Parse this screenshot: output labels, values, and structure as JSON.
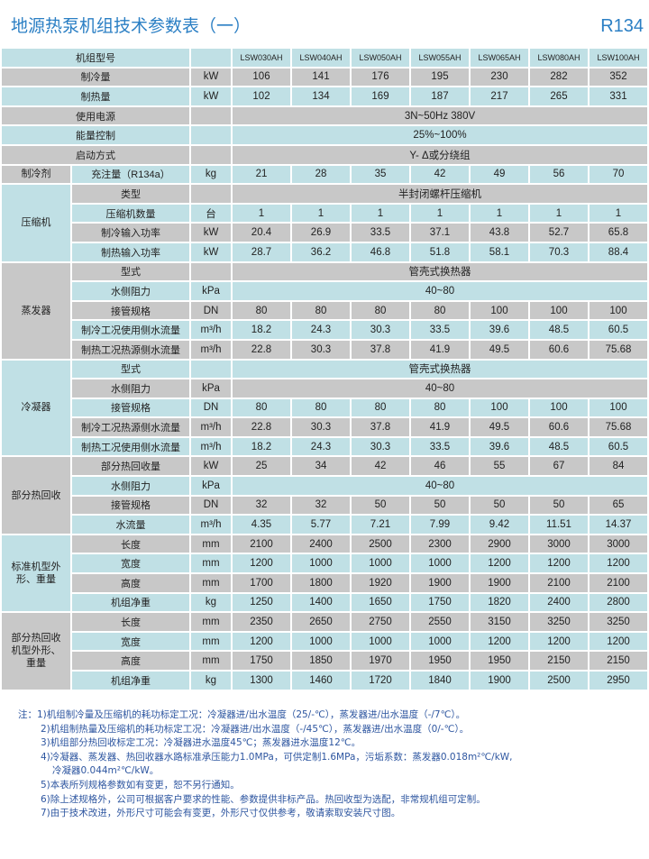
{
  "title": "地源热泵机组技术参数表（一）",
  "refrigerant_tag": "R134",
  "colors": {
    "row_blue": "#c0e0e5",
    "row_grey": "#c8c8c8",
    "title": "#2b7fc4",
    "notes": "#2e56a0"
  },
  "table": {
    "sections": [
      {
        "group": "",
        "rows": [
          {
            "label": "机组型号",
            "unit": "",
            "values": [
              "LSW030AH",
              "LSW040AH",
              "LSW050AH",
              "LSW055AH",
              "LSW065AH",
              "LSW080AH",
              "LSW100AH"
            ]
          },
          {
            "label": "制冷量",
            "unit": "kW",
            "values": [
              "106",
              "141",
              "176",
              "195",
              "230",
              "282",
              "352"
            ]
          },
          {
            "label": "制热量",
            "unit": "kW",
            "values": [
              "102",
              "134",
              "169",
              "187",
              "217",
              "265",
              "331"
            ]
          },
          {
            "label": "使用电源",
            "unit": "",
            "span": "3N~50Hz  380V"
          },
          {
            "label": "能量控制",
            "unit": "",
            "span": "25%~100%"
          },
          {
            "label": "启动方式",
            "unit": "",
            "span": "Y- Δ或分绕组"
          }
        ]
      },
      {
        "group": "制冷剂",
        "rows": [
          {
            "label": "充注量（R134a）",
            "unit": "kg",
            "values": [
              "21",
              "28",
              "35",
              "42",
              "49",
              "56",
              "70"
            ]
          }
        ]
      },
      {
        "group": "压缩机",
        "rows": [
          {
            "label": "类型",
            "unit": "",
            "span": "半封闭螺杆压缩机"
          },
          {
            "label": "压缩机数量",
            "unit": "台",
            "values": [
              "1",
              "1",
              "1",
              "1",
              "1",
              "1",
              "1"
            ]
          },
          {
            "label": "制冷输入功率",
            "unit": "kW",
            "values": [
              "20.4",
              "26.9",
              "33.5",
              "37.1",
              "43.8",
              "52.7",
              "65.8"
            ]
          },
          {
            "label": "制热输入功率",
            "unit": "kW",
            "values": [
              "28.7",
              "36.2",
              "46.8",
              "51.8",
              "58.1",
              "70.3",
              "88.4"
            ]
          }
        ]
      },
      {
        "group": "蒸发器",
        "rows": [
          {
            "label": "型式",
            "unit": "",
            "span": "管壳式换热器"
          },
          {
            "label": "水侧阻力",
            "unit": "kPa",
            "span": "40~80"
          },
          {
            "label": "接管规格",
            "unit": "DN",
            "values": [
              "80",
              "80",
              "80",
              "80",
              "100",
              "100",
              "100"
            ]
          },
          {
            "label": "制冷工况使用侧水流量",
            "unit": "m³/h",
            "values": [
              "18.2",
              "24.3",
              "30.3",
              "33.5",
              "39.6",
              "48.5",
              "60.5"
            ]
          },
          {
            "label": "制热工况热源侧水流量",
            "unit": "m³/h",
            "values": [
              "22.8",
              "30.3",
              "37.8",
              "41.9",
              "49.5",
              "60.6",
              "75.68"
            ]
          }
        ]
      },
      {
        "group": "冷凝器",
        "rows": [
          {
            "label": "型式",
            "unit": "",
            "span": "管壳式换热器"
          },
          {
            "label": "水侧阻力",
            "unit": "kPa",
            "span": "40~80"
          },
          {
            "label": "接管规格",
            "unit": "DN",
            "values": [
              "80",
              "80",
              "80",
              "80",
              "100",
              "100",
              "100"
            ]
          },
          {
            "label": "制冷工况热源侧水流量",
            "unit": "m³/h",
            "values": [
              "22.8",
              "30.3",
              "37.8",
              "41.9",
              "49.5",
              "60.6",
              "75.68"
            ]
          },
          {
            "label": "制热工况使用侧水流量",
            "unit": "m³/h",
            "values": [
              "18.2",
              "24.3",
              "30.3",
              "33.5",
              "39.6",
              "48.5",
              "60.5"
            ]
          }
        ]
      },
      {
        "group": "部分热回收",
        "rows": [
          {
            "label": "部分热回收量",
            "unit": "kW",
            "values": [
              "25",
              "34",
              "42",
              "46",
              "55",
              "67",
              "84"
            ]
          },
          {
            "label": "水侧阻力",
            "unit": "kPa",
            "span": "40~80"
          },
          {
            "label": "接管规格",
            "unit": "DN",
            "values": [
              "32",
              "32",
              "50",
              "50",
              "50",
              "50",
              "65"
            ]
          },
          {
            "label": "水流量",
            "unit": "m³/h",
            "values": [
              "4.35",
              "5.77",
              "7.21",
              "7.99",
              "9.42",
              "11.51",
              "14.37"
            ]
          }
        ]
      },
      {
        "group": "标准机型外形、重量",
        "rows": [
          {
            "label": "长度",
            "unit": "mm",
            "values": [
              "2100",
              "2400",
              "2500",
              "2300",
              "2900",
              "3000",
              "3000"
            ]
          },
          {
            "label": "宽度",
            "unit": "mm",
            "values": [
              "1200",
              "1000",
              "1000",
              "1000",
              "1200",
              "1200",
              "1200"
            ]
          },
          {
            "label": "高度",
            "unit": "mm",
            "values": [
              "1700",
              "1800",
              "1920",
              "1900",
              "1900",
              "2100",
              "2100"
            ]
          },
          {
            "label": "机组净重",
            "unit": "kg",
            "values": [
              "1250",
              "1400",
              "1650",
              "1750",
              "1820",
              "2400",
              "2800"
            ]
          }
        ]
      },
      {
        "group": "部分热回收机型外形、重量",
        "rows": [
          {
            "label": "长度",
            "unit": "mm",
            "values": [
              "2350",
              "2650",
              "2750",
              "2550",
              "3150",
              "3250",
              "3250"
            ]
          },
          {
            "label": "宽度",
            "unit": "mm",
            "values": [
              "1200",
              "1000",
              "1000",
              "1000",
              "1200",
              "1200",
              "1200"
            ]
          },
          {
            "label": "高度",
            "unit": "mm",
            "values": [
              "1750",
              "1850",
              "1970",
              "1950",
              "1950",
              "2150",
              "2150"
            ]
          },
          {
            "label": "机组净重",
            "unit": "kg",
            "values": [
              "1300",
              "1460",
              "1720",
              "1840",
              "1900",
              "2500",
              "2950"
            ]
          }
        ]
      }
    ]
  },
  "notes": [
    "注：1)机组制冷量及压缩机的耗功标定工况：冷凝器进/出水温度（25/-℃），蒸发器进/出水温度（-/7℃）。",
    "2)机组制热量及压缩机的耗功标定工况：冷凝器进/出水温度（-/45℃），蒸发器进/出水温度（0/-℃）。",
    "3)机组部分热回收标定工况：冷凝器进水温度45℃；蒸发器进水温度12℃。",
    "4)冷凝器、蒸发器、热回收器水路标准承压能力1.0MPa，可供定制1.6MPa，污垢系数：蒸发器0.018m²℃/kW,",
    "冷凝器0.044m²℃/kW。",
    "5)本表所列规格参数如有变更，恕不另行通知。",
    "6)除上述规格外，公司可根据客户要求的性能、参数提供非标产品。热回收型为选配，非常规机组可定制。",
    "7)由于技术改进，外形尺寸可能会有变更，外形尺寸仅供参考，敬请索取安装尺寸图。"
  ]
}
